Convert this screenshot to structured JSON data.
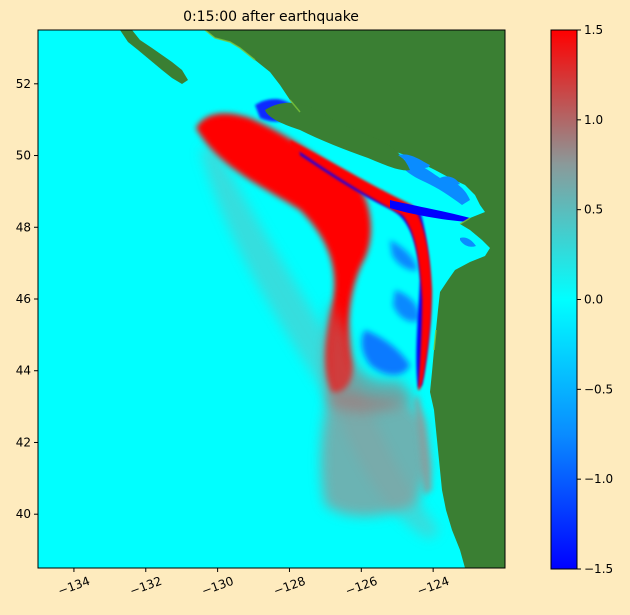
{
  "figure": {
    "title": "0:15:00 after earthquake",
    "background": "#feebbe"
  },
  "map": {
    "x_range": [
      -135.0,
      -122.0
    ],
    "y_range": [
      38.5,
      53.5
    ],
    "x_ticks": [
      {
        "value": -134,
        "label": "−134"
      },
      {
        "value": -132,
        "label": "−132"
      },
      {
        "value": -130,
        "label": "−130"
      },
      {
        "value": -128,
        "label": "−128"
      },
      {
        "value": -126,
        "label": "−126"
      },
      {
        "value": -124,
        "label": "−124"
      }
    ],
    "y_ticks": [
      {
        "value": 40,
        "label": "40"
      },
      {
        "value": 42,
        "label": "42"
      },
      {
        "value": 44,
        "label": "44"
      },
      {
        "value": 46,
        "label": "46"
      },
      {
        "value": 48,
        "label": "48"
      },
      {
        "value": 50,
        "label": "50"
      },
      {
        "value": 52,
        "label": "52"
      }
    ],
    "colors": {
      "ocean": "#00ffff",
      "land": "#3a7f33",
      "positive": "#ff0000",
      "negative": "#0000ff"
    }
  },
  "colorbar": {
    "range": [
      -1.5,
      1.5
    ],
    "ticks": [
      {
        "value": 1.5,
        "label": "1.5"
      },
      {
        "value": 1.0,
        "label": "1.0"
      },
      {
        "value": 0.5,
        "label": "0.5"
      },
      {
        "value": 0.0,
        "label": "0.0"
      },
      {
        "value": -0.5,
        "label": "−0.5"
      },
      {
        "value": -1.0,
        "label": "−1.0"
      },
      {
        "value": -1.5,
        "label": "−1.5"
      }
    ],
    "stops": [
      "#0000ff",
      "#00ffff",
      "#ff0000"
    ]
  }
}
